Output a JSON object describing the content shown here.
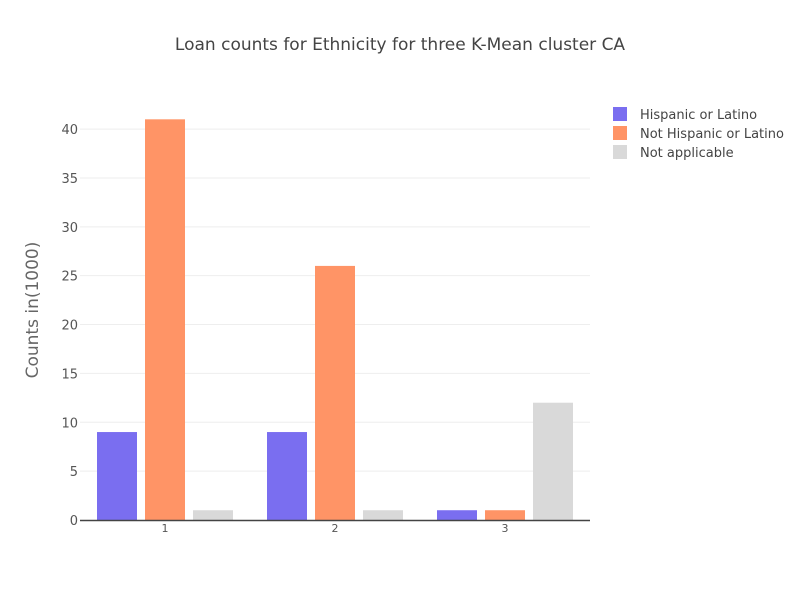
{
  "chart_data": {
    "type": "bar",
    "title": "Loan counts for Ethnicity for three K-Mean cluster CA",
    "xlabel": "",
    "ylabel": "Counts in(1000)",
    "categories": [
      "1",
      "2",
      "3"
    ],
    "ylim": [
      0,
      44
    ],
    "yticks": [
      0,
      5,
      10,
      15,
      20,
      25,
      30,
      35,
      40
    ],
    "grid": true,
    "legend_position": "top-right",
    "series": [
      {
        "name": "Hispanic or Latino",
        "values": [
          9,
          9,
          1
        ],
        "color": "#7a6ef0"
      },
      {
        "name": "Not Hispanic or Latino",
        "values": [
          41,
          26,
          1
        ],
        "color": "#ff9466"
      },
      {
        "name": "Not applicable",
        "values": [
          1,
          1,
          12
        ],
        "color": "#d9d9d9"
      }
    ]
  }
}
